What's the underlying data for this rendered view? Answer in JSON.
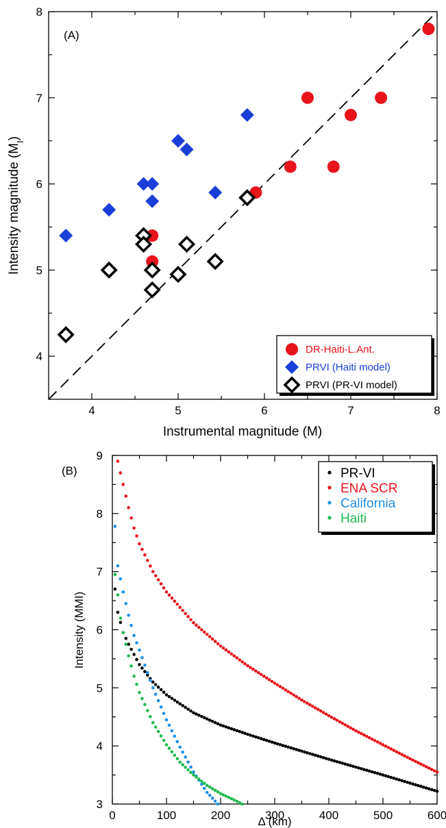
{
  "chart_data": [
    {
      "type": "scatter",
      "panel_label": "(A)",
      "title": "",
      "xlabel": "Instrumental magnitude (M)",
      "ylabel_main": "Intensity magnitude (M",
      "ylabel_sub": "I",
      "ylabel_end": ")",
      "xlim": [
        3.5,
        8
      ],
      "ylim": [
        3.5,
        8
      ],
      "x_ticks": [
        4,
        5,
        6,
        7,
        8
      ],
      "y_ticks": [
        4,
        5,
        6,
        7,
        8
      ],
      "reference_line": "1:1 dashed",
      "legend_position": "bottom-right",
      "series": [
        {
          "name": "DR-Haiti-L.Ant.",
          "marker": "circle",
          "color": "#e8131b",
          "points": [
            [
              4.7,
              5.4
            ],
            [
              4.7,
              5.1
            ],
            [
              5.9,
              5.9
            ],
            [
              6.3,
              6.2
            ],
            [
              6.5,
              7.0
            ],
            [
              6.8,
              6.2
            ],
            [
              7.0,
              6.8
            ],
            [
              7.35,
              7.0
            ],
            [
              7.9,
              7.8
            ]
          ]
        },
        {
          "name": "PRVI (Haiti model)",
          "marker": "diamond",
          "color": "#1a3fd8",
          "points": [
            [
              3.7,
              5.4
            ],
            [
              4.2,
              5.7
            ],
            [
              4.6,
              6.0
            ],
            [
              4.7,
              6.0
            ],
            [
              4.7,
              5.8
            ],
            [
              5.0,
              6.5
            ],
            [
              5.1,
              6.4
            ],
            [
              5.43,
              5.9
            ],
            [
              5.8,
              6.8
            ]
          ]
        },
        {
          "name": "PRVI (PR-VI model)",
          "marker": "open-diamond",
          "color": "#000000",
          "points": [
            [
              3.7,
              4.25
            ],
            [
              4.2,
              5.0
            ],
            [
              4.6,
              5.4
            ],
            [
              4.6,
              5.3
            ],
            [
              4.7,
              5.0
            ],
            [
              4.7,
              4.77
            ],
            [
              5.0,
              4.95
            ],
            [
              5.1,
              5.3
            ],
            [
              5.43,
              5.1
            ],
            [
              5.8,
              5.84
            ]
          ]
        }
      ]
    },
    {
      "type": "scatter",
      "panel_label": "(B)",
      "title": "",
      "xlabel": "Δ (km)",
      "ylabel": "Intensity (MMI)",
      "xlim": [
        0,
        600
      ],
      "ylim": [
        3,
        9
      ],
      "x_ticks": [
        0,
        100,
        200,
        300,
        400,
        500,
        600
      ],
      "y_ticks": [
        3,
        4,
        5,
        6,
        7,
        8,
        9
      ],
      "legend_position": "top-right",
      "series": [
        {
          "name": "PR-VI",
          "color": "#000000",
          "step_km": 5,
          "curve": [
            [
              5,
              6.7
            ],
            [
              10,
              6.3
            ],
            [
              20,
              5.95
            ],
            [
              30,
              5.75
            ],
            [
              50,
              5.4
            ],
            [
              75,
              5.1
            ],
            [
              100,
              4.88
            ],
            [
              150,
              4.57
            ],
            [
              200,
              4.36
            ],
            [
              250,
              4.2
            ],
            [
              300,
              4.05
            ],
            [
              400,
              3.77
            ],
            [
              500,
              3.5
            ],
            [
              600,
              3.22
            ]
          ]
        },
        {
          "name": "ENA SCR",
          "color": "#e8131b",
          "step_km": 5,
          "curve": [
            [
              10,
              8.9
            ],
            [
              20,
              8.5
            ],
            [
              30,
              8.1
            ],
            [
              40,
              7.75
            ],
            [
              50,
              7.48
            ],
            [
              75,
              7.0
            ],
            [
              100,
              6.65
            ],
            [
              150,
              6.12
            ],
            [
              200,
              5.72
            ],
            [
              250,
              5.38
            ],
            [
              300,
              5.08
            ],
            [
              350,
              4.79
            ],
            [
              400,
              4.52
            ],
            [
              450,
              4.26
            ],
            [
              500,
              4.02
            ],
            [
              550,
              3.78
            ],
            [
              600,
              3.55
            ]
          ]
        },
        {
          "name": "California",
          "color": "#1e8fe6",
          "step_km": 5,
          "curve": [
            [
              5,
              7.78
            ],
            [
              10,
              7.1
            ],
            [
              20,
              6.65
            ],
            [
              30,
              6.25
            ],
            [
              40,
              5.9
            ],
            [
              50,
              5.65
            ],
            [
              75,
              5.0
            ],
            [
              100,
              4.45
            ],
            [
              125,
              3.98
            ],
            [
              150,
              3.55
            ],
            [
              175,
              3.2
            ],
            [
              195,
              3.0
            ]
          ]
        },
        {
          "name": "Haiti",
          "color": "#1fba4e",
          "step_km": 5,
          "curve": [
            [
              5,
              6.95
            ],
            [
              10,
              6.6
            ],
            [
              15,
              6.2
            ],
            [
              20,
              5.95
            ],
            [
              30,
              5.55
            ],
            [
              40,
              5.2
            ],
            [
              50,
              4.92
            ],
            [
              75,
              4.4
            ],
            [
              100,
              4.02
            ],
            [
              125,
              3.72
            ],
            [
              150,
              3.5
            ],
            [
              175,
              3.32
            ],
            [
              200,
              3.18
            ],
            [
              225,
              3.07
            ],
            [
              240,
              3.0
            ]
          ]
        }
      ]
    }
  ]
}
